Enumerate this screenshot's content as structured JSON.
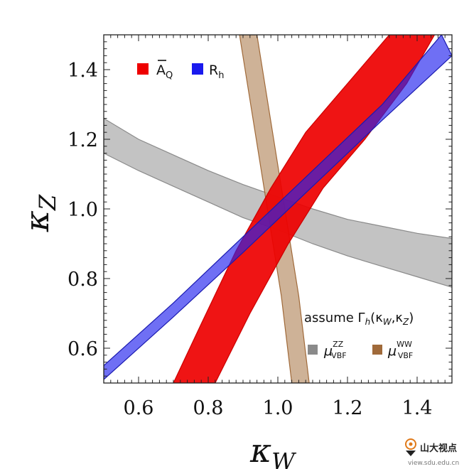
{
  "chart_data": {
    "type": "area",
    "xlim": [
      0.5,
      1.5
    ],
    "ylim": [
      0.5,
      1.5
    ],
    "x_ticks": [
      "0.6",
      "0.8",
      "1.0",
      "1.2",
      "1.4"
    ],
    "y_ticks": [
      "0.6",
      "0.8",
      "1.0",
      "1.2",
      "1.4"
    ],
    "xlabel": {
      "base": "κ",
      "sub": "W"
    },
    "ylabel": {
      "base": "κ",
      "sub": "Z"
    },
    "grid": false,
    "legend_top": [
      {
        "key": "AQ",
        "base": "A",
        "sub": "Q",
        "overline": true,
        "color": "#ee0000"
      },
      {
        "key": "Rh",
        "base": "R",
        "sub": "h",
        "overline": false,
        "color": "#1a1aee"
      }
    ],
    "legend_bottom_note": {
      "prefix": "assume Γ",
      "sub": "h",
      "args": "(κ",
      "arg1_sub": "W",
      "sep": ",κ",
      "arg2_sub": "Z",
      "close": ")"
    },
    "legend_bottom": [
      {
        "key": "muZZ",
        "base": "μ",
        "sup": "ZZ",
        "sub": "VBF",
        "color": "#8a8a8a"
      },
      {
        "key": "muWW",
        "base": "μ",
        "sup": "WW",
        "sub": "VBF",
        "color": "#a06a3a"
      }
    ],
    "bands": [
      {
        "key": "muZZ",
        "fill": "#bdbdbd",
        "stroke": "#8a8a8a",
        "opacity": 0.9,
        "upper": [
          [
            0.5,
            1.26
          ],
          [
            0.6,
            1.2
          ],
          [
            0.7,
            1.155
          ],
          [
            0.8,
            1.11
          ],
          [
            0.9,
            1.07
          ],
          [
            1.0,
            1.035
          ],
          [
            1.1,
            1.0
          ],
          [
            1.2,
            0.97
          ],
          [
            1.3,
            0.95
          ],
          [
            1.4,
            0.93
          ],
          [
            1.5,
            0.915
          ]
        ],
        "lower": [
          [
            0.5,
            1.16
          ],
          [
            0.6,
            1.11
          ],
          [
            0.7,
            1.065
          ],
          [
            0.8,
            1.02
          ],
          [
            0.9,
            0.975
          ],
          [
            1.0,
            0.94
          ],
          [
            1.1,
            0.9
          ],
          [
            1.2,
            0.865
          ],
          [
            1.3,
            0.835
          ],
          [
            1.4,
            0.805
          ],
          [
            1.5,
            0.775
          ]
        ]
      },
      {
        "key": "muWW",
        "fill": "#c6a585",
        "stroke": "#a06a3a",
        "opacity": 0.85,
        "upper": [
          [
            0.89,
            1.5
          ],
          [
            0.93,
            1.25
          ],
          [
            0.97,
            1.0
          ],
          [
            1.01,
            0.75
          ],
          [
            1.04,
            0.5
          ]
        ],
        "lower": [
          [
            0.94,
            1.5
          ],
          [
            0.98,
            1.25
          ],
          [
            1.02,
            1.0
          ],
          [
            1.06,
            0.75
          ],
          [
            1.09,
            0.5
          ]
        ]
      },
      {
        "key": "AQ",
        "fill": "#ee0000",
        "stroke": "#cc0000",
        "opacity": 0.92,
        "upper": [
          [
            0.7,
            0.5
          ],
          [
            0.78,
            0.67
          ],
          [
            0.88,
            0.88
          ],
          [
            0.98,
            1.06
          ],
          [
            1.08,
            1.22
          ],
          [
            1.2,
            1.36
          ],
          [
            1.32,
            1.5
          ]
        ],
        "lower": [
          [
            0.82,
            0.5
          ],
          [
            0.92,
            0.7
          ],
          [
            1.03,
            0.9
          ],
          [
            1.13,
            1.06
          ],
          [
            1.25,
            1.2
          ],
          [
            1.37,
            1.36
          ],
          [
            1.45,
            1.5
          ]
        ]
      },
      {
        "key": "Rh",
        "fill": "#2222ee",
        "stroke": "#1a1ab0",
        "opacity": 0.65,
        "upper": [
          [
            0.5,
            0.55
          ],
          [
            0.7,
            0.73
          ],
          [
            0.9,
            0.92
          ],
          [
            1.1,
            1.11
          ],
          [
            1.3,
            1.3
          ],
          [
            1.47,
            1.5
          ]
        ],
        "lower": [
          [
            0.5,
            0.51
          ],
          [
            0.7,
            0.69
          ],
          [
            0.9,
            0.875
          ],
          [
            1.1,
            1.065
          ],
          [
            1.3,
            1.255
          ],
          [
            1.5,
            1.44
          ]
        ]
      }
    ]
  },
  "watermark": {
    "label": "山大视点",
    "url": "view.sdu.edu.cn"
  }
}
